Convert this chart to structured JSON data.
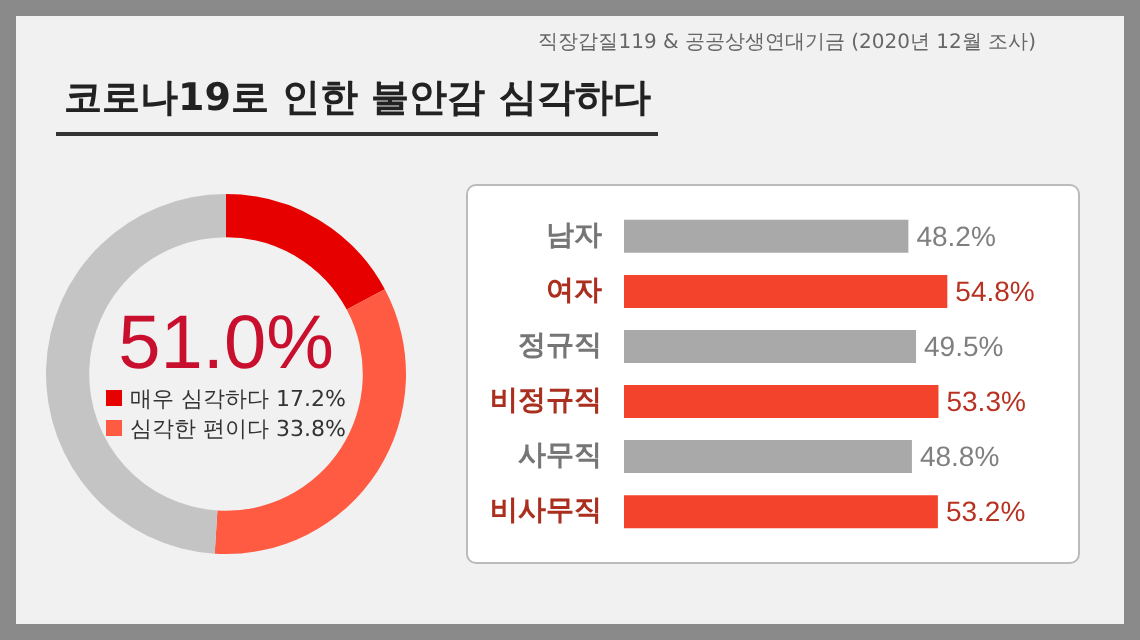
{
  "chart_data": [
    {
      "type": "donut",
      "title": "코로나19로 인한 불안감 심각하다",
      "categories": [
        "매우 심각하다",
        "심각한 편이다",
        null
      ],
      "values": [
        17.2,
        33.8,
        49.0
      ],
      "colors": [
        "#e60000",
        "#ff5a42",
        "#c4c4c4"
      ],
      "value_labels": [
        "17.2%",
        "33.8%",
        null
      ],
      "legend": "center",
      "annotations": [
        "51.0%",
        "직장갑질119 & 공공상생연대기금 (2020년 12월 조사)"
      ]
    },
    {
      "type": "bar",
      "orientation": "horizontal",
      "categories": [
        "남자",
        "여자",
        "정규직",
        "비정규직",
        "사무직",
        "비사무직"
      ],
      "values": [
        48.2,
        54.8,
        49.5,
        53.3,
        48.8,
        53.2
      ],
      "colors": [
        "#a9a9a9",
        "#f4432c",
        "#a9a9a9",
        "#f4432c",
        "#a9a9a9",
        "#f4432c"
      ],
      "value_labels": [
        "48.2%",
        "54.8%",
        "49.5%",
        "53.3%",
        "48.8%",
        "53.2%"
      ],
      "tick_labels": "y"
    }
  ]
}
